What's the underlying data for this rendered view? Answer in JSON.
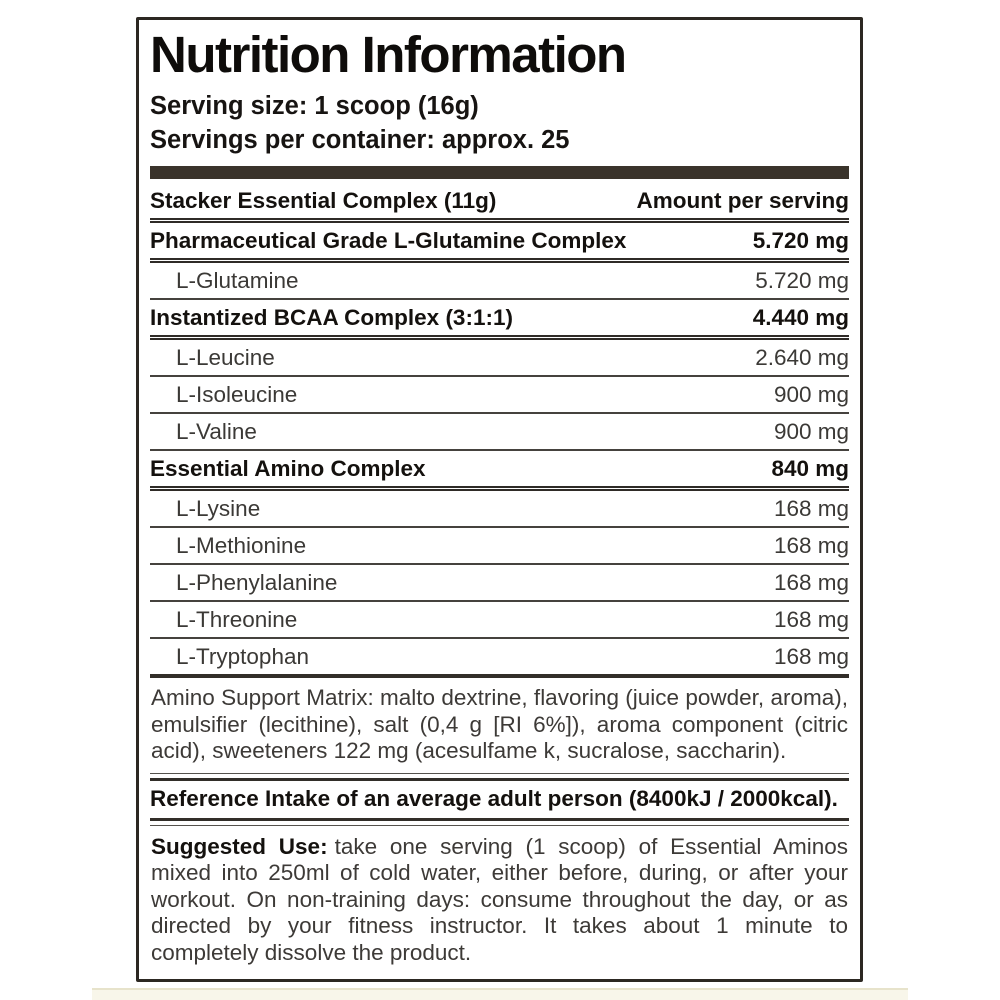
{
  "label": {
    "title": "Nutrition Information",
    "serving_size": {
      "label": "Serving size:",
      "value": "1 scoop (16g)"
    },
    "servings_per_container": {
      "label": "Servings per container:",
      "value": "approx. 25"
    }
  },
  "table": {
    "header": {
      "left": "Stacker Essential Complex (11g)",
      "right": "Amount per serving"
    },
    "rows": [
      {
        "name": "Pharmaceutical Grade L-Glutamine Complex",
        "amount": "5.720 mg",
        "emphasis": "bold"
      },
      {
        "name": "L-Glutamine",
        "amount": "5.720 mg",
        "emphasis": "sub"
      },
      {
        "name": "Instantized BCAA Complex (3:1:1)",
        "amount": "4.440 mg",
        "emphasis": "bold"
      },
      {
        "name": "L-Leucine",
        "amount": "2.640 mg",
        "emphasis": "sub"
      },
      {
        "name": "L-Isoleucine",
        "amount": "900 mg",
        "emphasis": "sub"
      },
      {
        "name": "L-Valine",
        "amount": "900 mg",
        "emphasis": "sub"
      },
      {
        "name": "Essential Amino Complex",
        "amount": "840 mg",
        "emphasis": "bold"
      },
      {
        "name": "L-Lysine",
        "amount": "168 mg",
        "emphasis": "sub"
      },
      {
        "name": "L-Methionine",
        "amount": "168 mg",
        "emphasis": "sub"
      },
      {
        "name": "L-Phenylalanine",
        "amount": "168 mg",
        "emphasis": "sub"
      },
      {
        "name": "L-Threonine",
        "amount": "168 mg",
        "emphasis": "sub"
      },
      {
        "name": "L-Tryptophan",
        "amount": "168 mg",
        "emphasis": "sub"
      }
    ]
  },
  "amino_support_matrix": "Amino Support Matrix: malto dextrine, flavoring (juice powder, aroma), emulsifier (lecithine), salt (0,4 g [RI 6%]), aroma component (citric acid), sweeteners 122 mg (acesulfame k, sucralose, saccharin).",
  "reference_intake": "Reference Intake of an average adult person (8400kJ / 2000kcal).",
  "suggested_use": {
    "label": "Suggested Use:",
    "text": "take one serving (1 scoop) of Essential Aminos mixed into 250ml of cold water, either before, during, or after your workout. On non-training days: consume throughout the day, or as directed by your fitness instructor. It takes about 1 minute to completely dissolve the product."
  },
  "colors": {
    "text_strong": "#14110e",
    "text_muted": "#3d3a37",
    "heavy_bar": "#3a332b",
    "panel_border": "#2c2822",
    "rule": "#45423e",
    "bottom_strip_bg": "#f8f6ea",
    "bottom_strip_edge": "#e7e3cb"
  }
}
